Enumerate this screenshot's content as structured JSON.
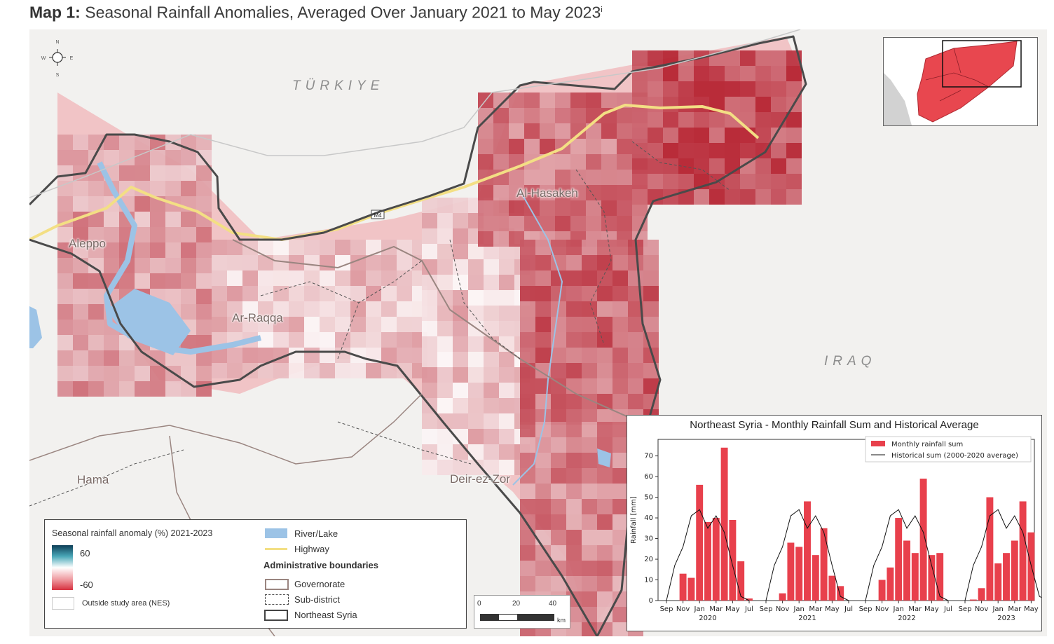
{
  "title": {
    "bold": "Map 1:",
    "text": " Seasonal Rainfall Anomalies, Averaged Over January 2021 to May 2023",
    "note": "i"
  },
  "map": {
    "countries": [
      "TÜRKIYE",
      "IRAQ"
    ],
    "cities": [
      "Al-Hasakeh",
      "Aleppo",
      "Ar-Raqqa",
      "Deir-ez-Zor",
      "Hama"
    ],
    "road_label": "M4",
    "compass": {
      "n": "N",
      "s": "S",
      "e": "E",
      "w": "W"
    }
  },
  "legend": {
    "title": "Seasonal rainfall anomaly (%) 2021-2023",
    "max_label": "60",
    "min_label": "-60",
    "outside_label": "Outside study area (NES)",
    "river_label": "River/Lake",
    "highway_label": "Highway",
    "admin_title": "Administrative boundaries",
    "governorate_label": "Governorate",
    "subdistrict_label": "Sub-district",
    "nes_label": "Northeast Syria",
    "colors": {
      "positive": "#0d3e57",
      "neutral": "#ffffff",
      "negative": "#d7303f",
      "river": "#9cc3e6",
      "highway": "#f3df84",
      "governorate": "#9a8580"
    }
  },
  "scalebar": {
    "labels": [
      "0",
      "20",
      "40"
    ],
    "unit": "km"
  },
  "chart_data": {
    "type": "bar",
    "title": "Northeast Syria - Monthly Rainfall Sum and Historical Average",
    "ylabel": "Rainfall [mm]",
    "ylim": [
      0,
      78
    ],
    "yticks": [
      0,
      10,
      20,
      30,
      40,
      50,
      60,
      70
    ],
    "season_labels": [
      "2020",
      "2021",
      "2022",
      "2023"
    ],
    "month_tick_labels": [
      "Sep",
      "Nov",
      "Jan",
      "Mar",
      "May",
      "Jul"
    ],
    "legend": {
      "bar": "Monthly rainfall sum",
      "line": "Historical sum (2000-2020 average)"
    },
    "series": [
      {
        "name": "Monthly rainfall sum",
        "seasons": [
          [
            0,
            13,
            11,
            56,
            38,
            40,
            74,
            39,
            19,
            1
          ],
          [
            0,
            3.5,
            28,
            26,
            48,
            22,
            35,
            12,
            7,
            0
          ],
          [
            0,
            10,
            16,
            40,
            29,
            23,
            59,
            22,
            23,
            0
          ],
          [
            0.5,
            6,
            50,
            18,
            23,
            29,
            48,
            33
          ]
        ]
      },
      {
        "name": "Historical sum (2000-2020 average)",
        "profile": [
          0,
          17,
          26,
          41,
          44,
          35,
          41,
          33,
          17,
          2,
          0
        ]
      }
    ],
    "colors": {
      "bar": "#e8404c",
      "line": "#111111"
    }
  }
}
